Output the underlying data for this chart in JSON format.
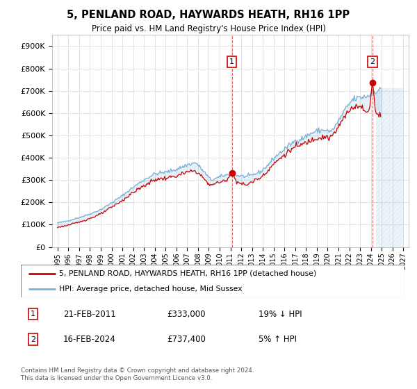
{
  "title": "5, PENLAND ROAD, HAYWARDS HEATH, RH16 1PP",
  "subtitle": "Price paid vs. HM Land Registry's House Price Index (HPI)",
  "legend_line1": "5, PENLAND ROAD, HAYWARDS HEATH, RH16 1PP (detached house)",
  "legend_line2": "HPI: Average price, detached house, Mid Sussex",
  "annotation1_date": "21-FEB-2011",
  "annotation1_price": "£333,000",
  "annotation1_hpi": "19% ↓ HPI",
  "annotation1_year": 2011.13,
  "annotation1_value": 333000,
  "annotation2_date": "16-FEB-2024",
  "annotation2_price": "£737,400",
  "annotation2_hpi": "5% ↑ HPI",
  "annotation2_year": 2024.13,
  "annotation2_value": 737400,
  "price_color": "#cc0000",
  "hpi_color": "#7ab0d4",
  "ylim": [
    0,
    950000
  ],
  "xlim_start": 1994.5,
  "xlim_end": 2027.5,
  "footer1": "Contains HM Land Registry data © Crown copyright and database right 2024.",
  "footer2": "This data is licensed under the Open Government Licence v3.0."
}
